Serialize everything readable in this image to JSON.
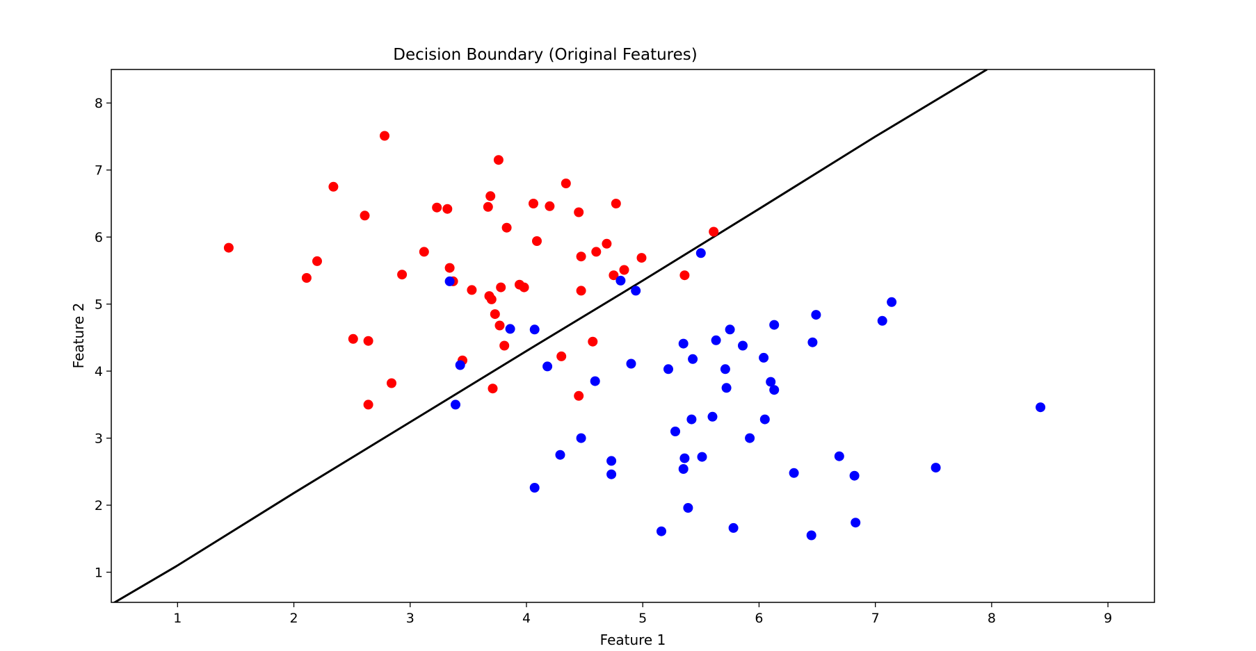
{
  "chart_data": {
    "type": "scatter",
    "title": "Decision Boundary (Original Features)",
    "xlabel": "Feature 1",
    "ylabel": "Feature 2",
    "xlim": [
      0.43,
      9.4
    ],
    "ylim": [
      0.55,
      8.5
    ],
    "xticks": [
      1,
      2,
      3,
      4,
      5,
      6,
      7,
      8,
      9
    ],
    "yticks": [
      1,
      2,
      3,
      4,
      5,
      6,
      7,
      8
    ],
    "grid": false,
    "legend": "none",
    "colors": {
      "red_class": "#ff0000",
      "blue_class": "#0000ff",
      "boundary": "#000000"
    },
    "series": [
      {
        "color": "#ff0000",
        "points": [
          [
            1.44,
            5.84
          ],
          [
            2.11,
            5.39
          ],
          [
            2.2,
            5.64
          ],
          [
            2.34,
            6.75
          ],
          [
            2.51,
            4.48
          ],
          [
            2.61,
            6.32
          ],
          [
            2.64,
            4.45
          ],
          [
            2.64,
            3.5
          ],
          [
            2.78,
            7.51
          ],
          [
            2.84,
            3.82
          ],
          [
            2.93,
            5.44
          ],
          [
            3.12,
            5.78
          ],
          [
            3.23,
            6.44
          ],
          [
            3.32,
            6.42
          ],
          [
            3.34,
            5.54
          ],
          [
            3.37,
            5.34
          ],
          [
            3.45,
            4.16
          ],
          [
            3.53,
            5.21
          ],
          [
            3.67,
            6.45
          ],
          [
            3.68,
            5.12
          ],
          [
            3.69,
            6.61
          ],
          [
            3.7,
            5.07
          ],
          [
            3.71,
            3.74
          ],
          [
            3.73,
            4.85
          ],
          [
            3.76,
            7.15
          ],
          [
            3.77,
            4.68
          ],
          [
            3.78,
            5.25
          ],
          [
            3.81,
            4.38
          ],
          [
            3.83,
            6.14
          ],
          [
            3.94,
            5.29
          ],
          [
            3.98,
            5.25
          ],
          [
            4.06,
            6.5
          ],
          [
            4.09,
            5.94
          ],
          [
            4.2,
            6.46
          ],
          [
            4.3,
            4.22
          ],
          [
            4.34,
            6.8
          ],
          [
            4.45,
            6.37
          ],
          [
            4.45,
            3.63
          ],
          [
            4.47,
            5.71
          ],
          [
            4.47,
            5.2
          ],
          [
            4.57,
            4.44
          ],
          [
            4.6,
            5.78
          ],
          [
            4.69,
            5.9
          ],
          [
            4.75,
            5.43
          ],
          [
            4.77,
            6.5
          ],
          [
            4.84,
            5.51
          ],
          [
            4.99,
            5.69
          ],
          [
            5.36,
            5.43
          ],
          [
            5.61,
            6.08
          ]
        ]
      },
      {
        "color": "#0000ff",
        "points": [
          [
            3.34,
            5.34
          ],
          [
            3.39,
            3.5
          ],
          [
            3.43,
            4.09
          ],
          [
            3.86,
            4.63
          ],
          [
            4.07,
            4.62
          ],
          [
            4.07,
            2.26
          ],
          [
            4.18,
            4.07
          ],
          [
            4.29,
            2.75
          ],
          [
            4.47,
            3.0
          ],
          [
            4.59,
            3.85
          ],
          [
            4.73,
            2.66
          ],
          [
            4.73,
            2.46
          ],
          [
            4.81,
            5.35
          ],
          [
            4.9,
            4.11
          ],
          [
            4.94,
            5.2
          ],
          [
            5.16,
            1.61
          ],
          [
            5.22,
            4.03
          ],
          [
            5.28,
            3.1
          ],
          [
            5.35,
            4.41
          ],
          [
            5.35,
            2.54
          ],
          [
            5.36,
            2.7
          ],
          [
            5.39,
            1.96
          ],
          [
            5.42,
            3.28
          ],
          [
            5.43,
            4.18
          ],
          [
            5.5,
            5.76
          ],
          [
            5.51,
            2.72
          ],
          [
            5.6,
            3.32
          ],
          [
            5.63,
            4.46
          ],
          [
            5.71,
            4.03
          ],
          [
            5.72,
            3.75
          ],
          [
            5.75,
            4.62
          ],
          [
            5.78,
            1.66
          ],
          [
            5.86,
            4.38
          ],
          [
            5.92,
            3.0
          ],
          [
            6.04,
            4.2
          ],
          [
            6.05,
            3.28
          ],
          [
            6.1,
            3.84
          ],
          [
            6.13,
            4.69
          ],
          [
            6.13,
            3.72
          ],
          [
            6.3,
            2.48
          ],
          [
            6.45,
            1.55
          ],
          [
            6.46,
            4.43
          ],
          [
            6.49,
            4.84
          ],
          [
            6.69,
            2.73
          ],
          [
            6.82,
            2.44
          ],
          [
            6.83,
            1.74
          ],
          [
            7.06,
            4.75
          ],
          [
            7.14,
            5.03
          ],
          [
            7.52,
            2.56
          ],
          [
            8.42,
            3.46
          ]
        ]
      }
    ],
    "boundary_line": {
      "type": "line",
      "x": [
        0.43,
        1.0,
        2.0,
        3.0,
        4.0,
        5.0,
        6.0,
        7.0,
        7.96
      ],
      "y": [
        0.52,
        1.1,
        2.18,
        3.24,
        4.3,
        5.35,
        6.42,
        7.5,
        8.5
      ]
    }
  }
}
